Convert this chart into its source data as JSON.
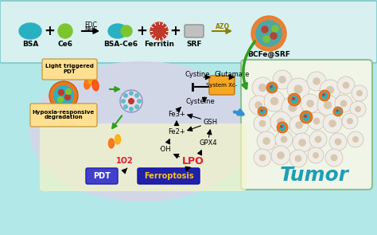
{
  "bg_color": "#b2e8e8",
  "top_labels": [
    "BSA",
    "Ce6",
    "BSA-Ce6",
    "Ferritin",
    "SRF",
    "BCFe@SRF"
  ],
  "cell_labels": [
    "Light triggered\nPDT",
    "Hypoxia-responsive\ndegradation",
    "Cystine",
    "Glutamate",
    "System Xc-",
    "Cysteine",
    "Fe3+",
    "Fe2+",
    "GSH",
    "·OH",
    "GPX4",
    "LPO",
    "1O2",
    "PDT",
    "Ferroptosis"
  ],
  "tumor_label": "Tumor",
  "tumor_color": "#1b9fb5",
  "lpo_color": "#e8192c",
  "o2_color": "#e8192c",
  "cell_bg": "#d8d5e8",
  "bottom_bg": "#f5f5c8",
  "tumor_bg": "#f0f5e8",
  "green_arrow": "#2ea020",
  "blue_arrow": "#3090d8",
  "azo_color": "#8B8000"
}
